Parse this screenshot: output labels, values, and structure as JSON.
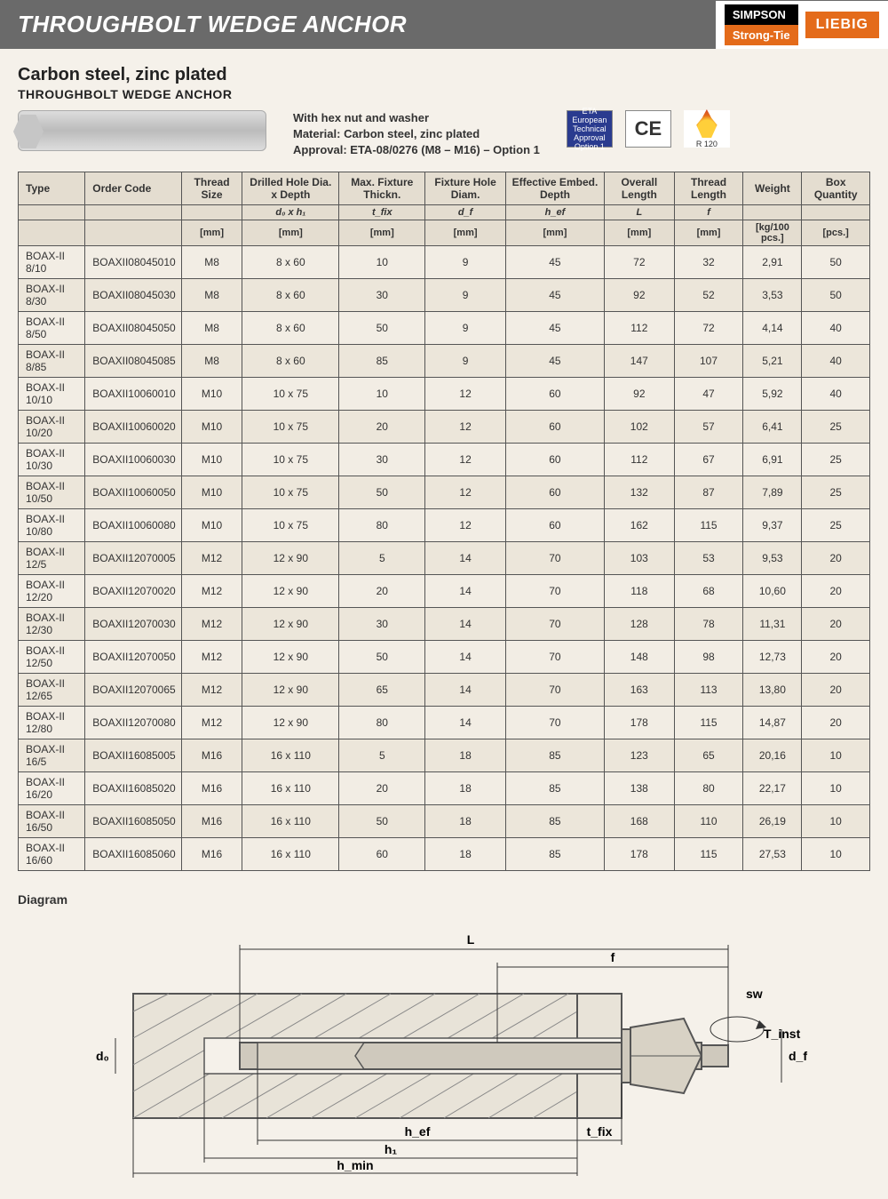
{
  "header": {
    "title": "THROUGHBOLT WEDGE ANCHOR",
    "logo_simpson": "SIMPSON",
    "logo_strongtie": "Strong-Tie",
    "logo_liebig": "LIEBIG"
  },
  "intro": {
    "subtitle": "Carbon steel, zinc plated",
    "subsub": "THROUGHBOLT WEDGE ANCHOR",
    "spec_line1": "With hex nut and washer",
    "spec_line2": "Material: Carbon steel, zinc plated",
    "spec_line3": "Approval: ETA-08/0276 (M8 – M16) – Option 1",
    "badge_eta": "ETA European Technical Approval Option 1",
    "badge_ce": "CE",
    "badge_fire": "R 120"
  },
  "table": {
    "columns": [
      {
        "label": "Type",
        "symbol": "",
        "unit": ""
      },
      {
        "label": "Order Code",
        "symbol": "",
        "unit": ""
      },
      {
        "label": "Thread Size",
        "symbol": "",
        "unit": "[mm]"
      },
      {
        "label": "Drilled Hole Dia. x Depth",
        "symbol": "d₀ x h₁",
        "unit": "[mm]"
      },
      {
        "label": "Max. Fixture Thickn.",
        "symbol": "t_fix",
        "unit": "[mm]"
      },
      {
        "label": "Fixture Hole Diam.",
        "symbol": "d_f",
        "unit": "[mm]"
      },
      {
        "label": "Effective Embed. Depth",
        "symbol": "h_ef",
        "unit": "[mm]"
      },
      {
        "label": "Overall Length",
        "symbol": "L",
        "unit": "[mm]"
      },
      {
        "label": "Thread Length",
        "symbol": "f",
        "unit": "[mm]"
      },
      {
        "label": "Weight",
        "symbol": "",
        "unit": "[kg/100 pcs.]"
      },
      {
        "label": "Box Quantity",
        "symbol": "",
        "unit": "[pcs.]"
      }
    ],
    "rows": [
      [
        "BOAX-II 8/10",
        "BOAXII08045010",
        "M8",
        "8 x 60",
        "10",
        "9",
        "45",
        "72",
        "32",
        "2,91",
        "50"
      ],
      [
        "BOAX-II 8/30",
        "BOAXII08045030",
        "M8",
        "8 x 60",
        "30",
        "9",
        "45",
        "92",
        "52",
        "3,53",
        "50"
      ],
      [
        "BOAX-II 8/50",
        "BOAXII08045050",
        "M8",
        "8 x 60",
        "50",
        "9",
        "45",
        "112",
        "72",
        "4,14",
        "40"
      ],
      [
        "BOAX-II 8/85",
        "BOAXII08045085",
        "M8",
        "8 x 60",
        "85",
        "9",
        "45",
        "147",
        "107",
        "5,21",
        "40"
      ],
      [
        "BOAX-II 10/10",
        "BOAXII10060010",
        "M10",
        "10 x 75",
        "10",
        "12",
        "60",
        "92",
        "47",
        "5,92",
        "40"
      ],
      [
        "BOAX-II 10/20",
        "BOAXII10060020",
        "M10",
        "10 x 75",
        "20",
        "12",
        "60",
        "102",
        "57",
        "6,41",
        "25"
      ],
      [
        "BOAX-II 10/30",
        "BOAXII10060030",
        "M10",
        "10 x 75",
        "30",
        "12",
        "60",
        "112",
        "67",
        "6,91",
        "25"
      ],
      [
        "BOAX-II 10/50",
        "BOAXII10060050",
        "M10",
        "10 x 75",
        "50",
        "12",
        "60",
        "132",
        "87",
        "7,89",
        "25"
      ],
      [
        "BOAX-II 10/80",
        "BOAXII10060080",
        "M10",
        "10 x 75",
        "80",
        "12",
        "60",
        "162",
        "115",
        "9,37",
        "25"
      ],
      [
        "BOAX-II 12/5",
        "BOAXII12070005",
        "M12",
        "12 x 90",
        "5",
        "14",
        "70",
        "103",
        "53",
        "9,53",
        "20"
      ],
      [
        "BOAX-II 12/20",
        "BOAXII12070020",
        "M12",
        "12 x 90",
        "20",
        "14",
        "70",
        "118",
        "68",
        "10,60",
        "20"
      ],
      [
        "BOAX-II 12/30",
        "BOAXII12070030",
        "M12",
        "12 x 90",
        "30",
        "14",
        "70",
        "128",
        "78",
        "11,31",
        "20"
      ],
      [
        "BOAX-II 12/50",
        "BOAXII12070050",
        "M12",
        "12 x 90",
        "50",
        "14",
        "70",
        "148",
        "98",
        "12,73",
        "20"
      ],
      [
        "BOAX-II 12/65",
        "BOAXII12070065",
        "M12",
        "12 x 90",
        "65",
        "14",
        "70",
        "163",
        "113",
        "13,80",
        "20"
      ],
      [
        "BOAX-II 12/80",
        "BOAXII12070080",
        "M12",
        "12 x 90",
        "80",
        "14",
        "70",
        "178",
        "115",
        "14,87",
        "20"
      ],
      [
        "BOAX-II 16/5",
        "BOAXII16085005",
        "M16",
        "16 x 110",
        "5",
        "18",
        "85",
        "123",
        "65",
        "20,16",
        "10"
      ],
      [
        "BOAX-II 16/20",
        "BOAXII16085020",
        "M16",
        "16 x 110",
        "20",
        "18",
        "85",
        "138",
        "80",
        "22,17",
        "10"
      ],
      [
        "BOAX-II 16/50",
        "BOAXII16085050",
        "M16",
        "16 x 110",
        "50",
        "18",
        "85",
        "168",
        "110",
        "26,19",
        "10"
      ],
      [
        "BOAX-II 16/60",
        "BOAXII16085060",
        "M16",
        "16 x 110",
        "60",
        "18",
        "85",
        "178",
        "115",
        "27,53",
        "10"
      ]
    ]
  },
  "diagram": {
    "label": "Diagram",
    "L": "L",
    "f": "f",
    "sw": "sw",
    "Tinst": "T_inst",
    "d0": "d₀",
    "df": "d_f",
    "hef": "h_ef",
    "h1": "h₁",
    "hmin": "h_min",
    "tfix": "t_fix"
  },
  "style": {
    "page_bg": "#f5f1ea",
    "header_bg": "#6a6a6a",
    "accent1": "#e46b1a",
    "border": "#555555",
    "row_alt": "#ece6da",
    "thead_bg": "#e4ddd0"
  }
}
